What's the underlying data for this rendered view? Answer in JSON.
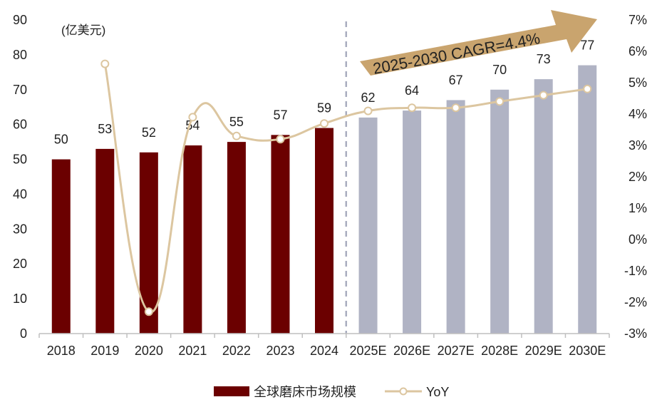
{
  "chart_data": {
    "type": "bar",
    "unit_label": "(亿美元)",
    "categories": [
      "2018",
      "2019",
      "2020",
      "2021",
      "2022",
      "2023",
      "2024",
      "2025E",
      "2026E",
      "2027E",
      "2028E",
      "2029E",
      "2030E"
    ],
    "series": [
      {
        "name": "全球磨床市场规模",
        "type": "bar",
        "axis": "left",
        "values": [
          50,
          53,
          52,
          54,
          55,
          57,
          59,
          62,
          64,
          67,
          70,
          73,
          77
        ],
        "labels": [
          "50",
          "53",
          "52",
          "54",
          "55",
          "57",
          "59",
          "62",
          "64",
          "67",
          "70",
          "73",
          "77"
        ],
        "actual_color": "#6b0000",
        "forecast_color": "#b0b3c4"
      },
      {
        "name": "YoY",
        "type": "line",
        "axis": "right",
        "values": [
          null,
          5.6,
          -2.3,
          3.9,
          3.3,
          3.2,
          3.7,
          4.1,
          4.2,
          4.2,
          4.4,
          4.6,
          4.8
        ],
        "color": "#dcc6a0"
      }
    ],
    "left_axis": {
      "min": 0,
      "max": 90,
      "step": 10,
      "ticks": [
        "0",
        "10",
        "20",
        "30",
        "40",
        "50",
        "60",
        "70",
        "80",
        "90"
      ]
    },
    "right_axis": {
      "min": -3,
      "max": 7,
      "step": 1,
      "ticks": [
        "-3%",
        "-2%",
        "-1%",
        "0%",
        "1%",
        "2%",
        "3%",
        "4%",
        "5%",
        "6%",
        "7%"
      ]
    },
    "forecast_start_index": 7,
    "annotation": {
      "text": "2025-2030 CAGR=4.4%",
      "arrow_color": "#c9a46e"
    },
    "legend": {
      "placement": "bottom-center"
    },
    "grid": false
  }
}
